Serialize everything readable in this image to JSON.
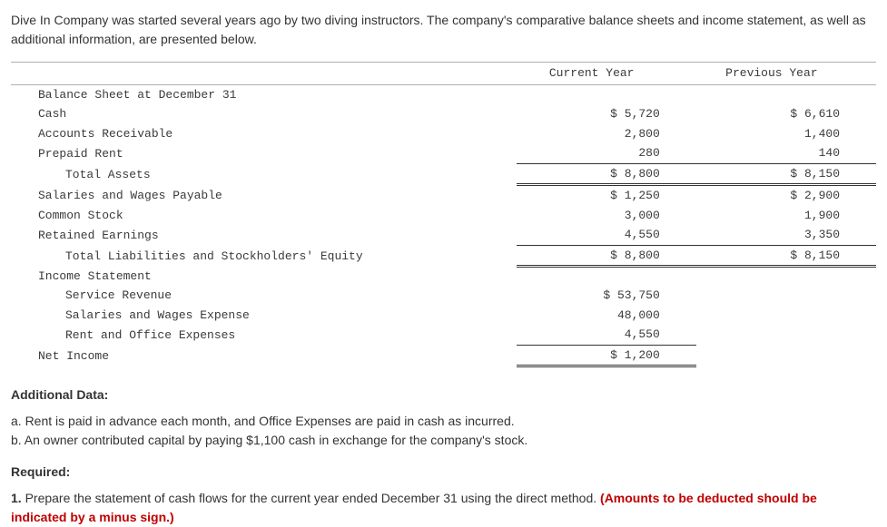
{
  "intro": "Dive In Company was started several years ago by two diving instructors. The company's comparative balance sheets and income statement, as well as additional information, are presented below.",
  "table": {
    "header_cur": "Current Year",
    "header_prev": "Previous Year",
    "bs_title": "Balance Sheet at December 31",
    "rows": {
      "cash_l": "Cash",
      "cash_c": "$ 5,720",
      "cash_p": "$ 6,610",
      "ar_l": "Accounts Receivable",
      "ar_c": "2,800",
      "ar_p": "1,400",
      "pr_l": "Prepaid Rent",
      "pr_c": "280",
      "pr_p": "140",
      "ta_l": "Total Assets",
      "ta_c": "$ 8,800",
      "ta_p": "$ 8,150",
      "swp_l": "Salaries and Wages Payable",
      "swp_c": "$ 1,250",
      "swp_p": "$ 2,900",
      "cs_l": "Common Stock",
      "cs_c": "3,000",
      "cs_p": "1,900",
      "re_l": "Retained Earnings",
      "re_c": "4,550",
      "re_p": "3,350",
      "tlse_l": "Total Liabilities and Stockholders' Equity",
      "tlse_c": "$ 8,800",
      "tlse_p": "$ 8,150",
      "is_title": "Income Statement",
      "sr_l": "Service Revenue",
      "sr_c": "$ 53,750",
      "swe_l": "Salaries and Wages Expense",
      "swe_c": "48,000",
      "roe_l": "Rent and Office Expenses",
      "roe_c": "4,550",
      "ni_l": "Net Income",
      "ni_c": "$ 1,200"
    }
  },
  "additional": {
    "heading": "Additional Data:",
    "a": "a. Rent is paid in advance each month, and Office Expenses are paid in cash as incurred.",
    "b": "b. An owner contributed capital by paying $1,100 cash in exchange for the company's stock."
  },
  "required": {
    "heading": "Required:",
    "line1_num": "1. ",
    "line1_text": "Prepare the statement of cash flows for the current year ended December 31 using the direct method. ",
    "line1_red": "(Amounts to be deducted should be indicated by a minus sign.)"
  }
}
